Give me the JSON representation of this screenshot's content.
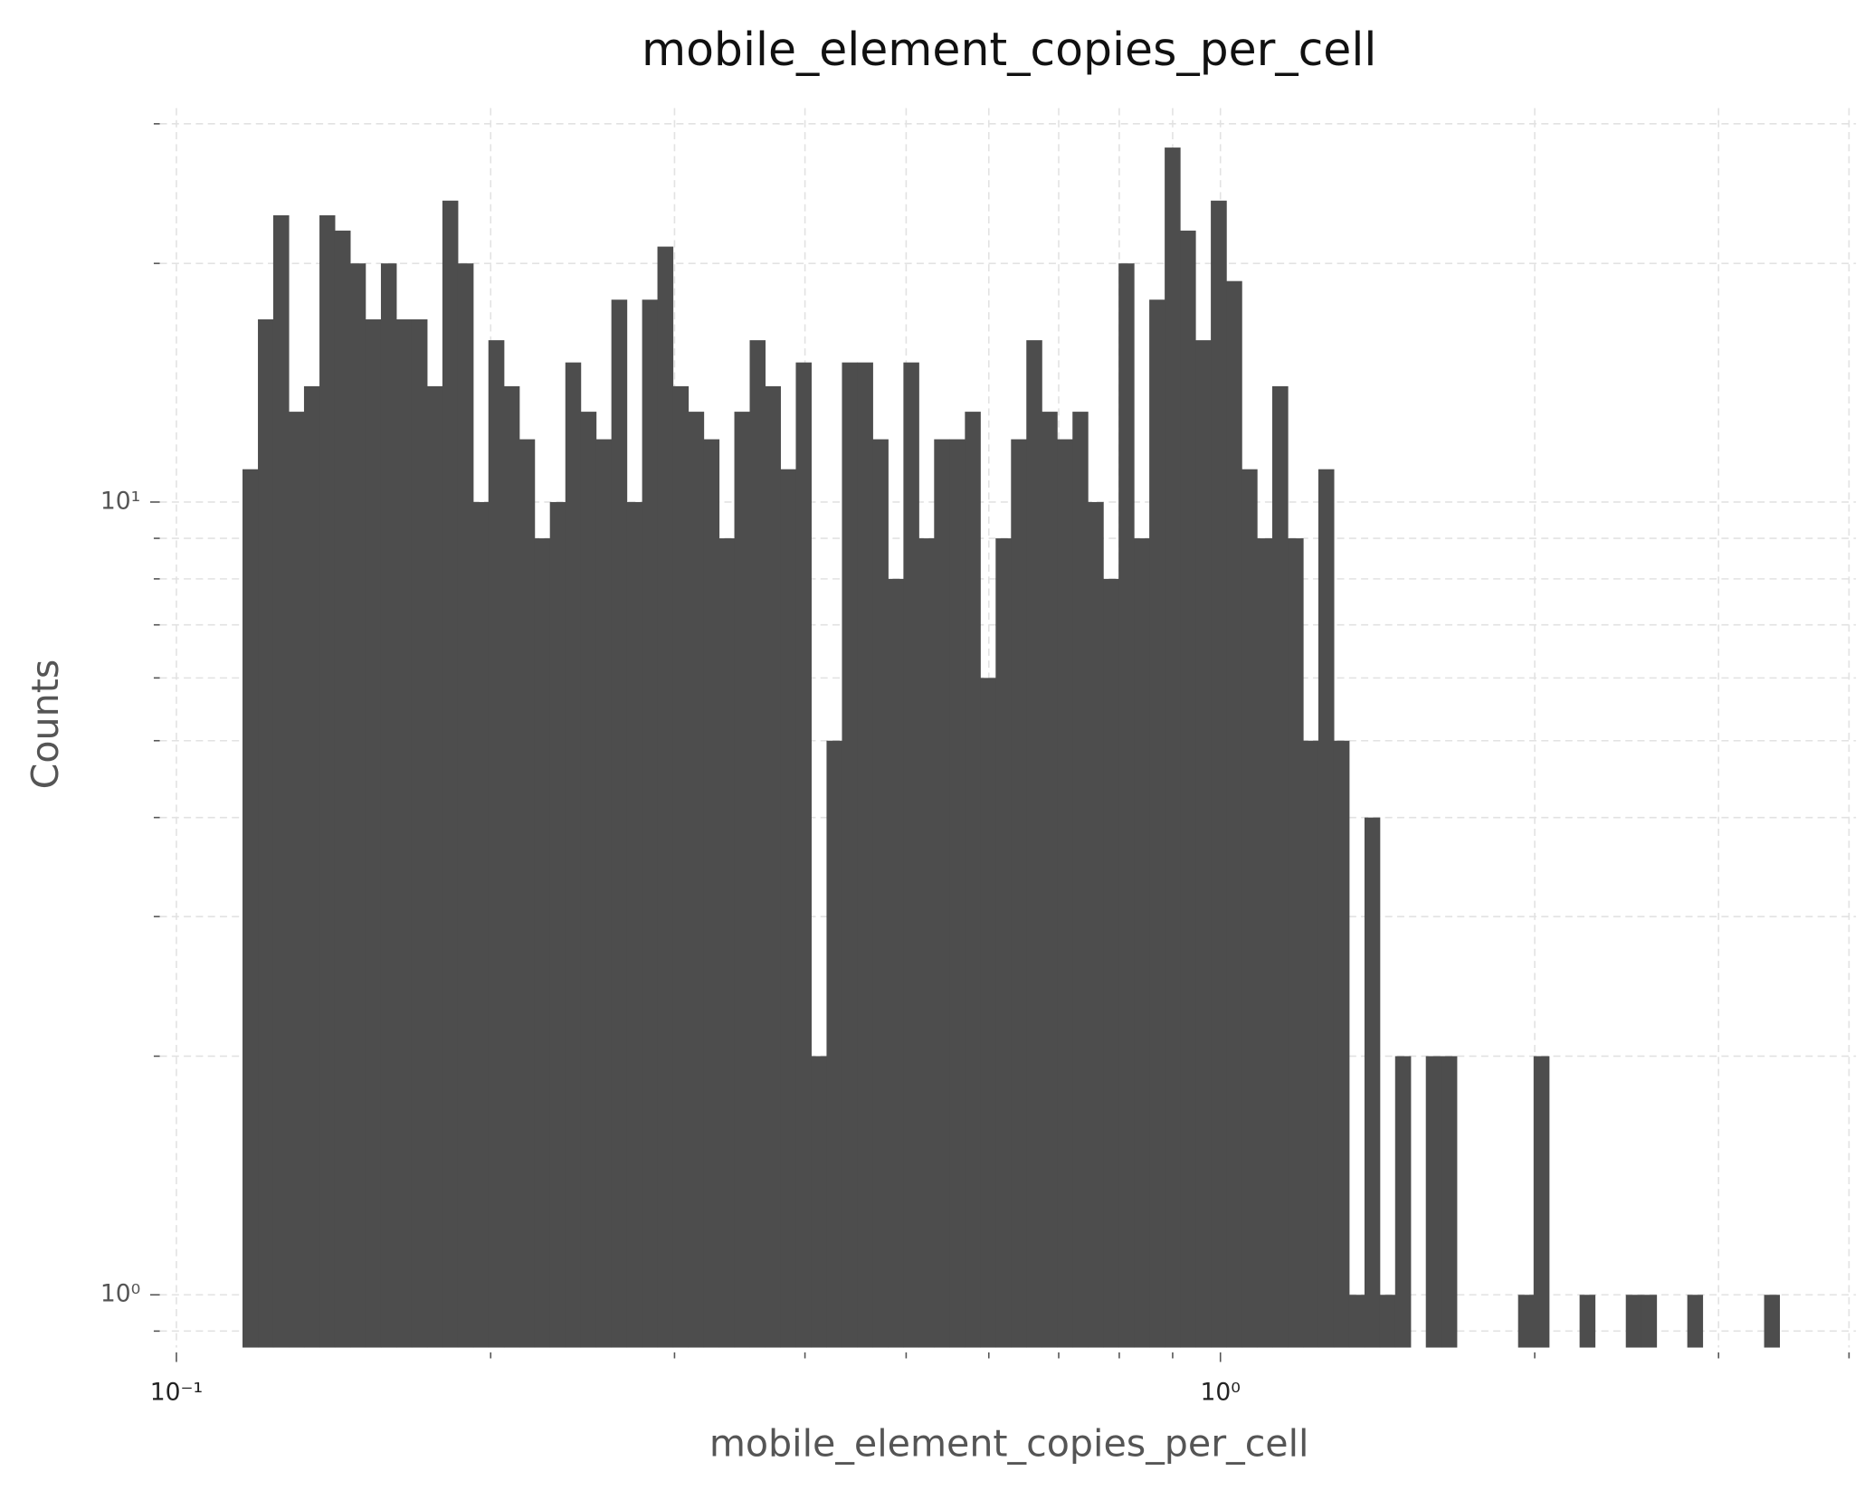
{
  "chart_data": {
    "type": "histogram",
    "title": "mobile_element_copies_per_cell",
    "x_label": "mobile_element_copies_per_cell",
    "y_label": "Counts",
    "color": "#4d4d4d",
    "xscale": "log",
    "yscale": "log",
    "grid": true,
    "xlim": [
      0.0964,
      4.062
    ],
    "ylim": [
      0.858,
      31.4
    ],
    "xticks": [
      {
        "value": 0.1,
        "label": "10⁻¹"
      },
      {
        "value": 1,
        "label": "10⁰"
      }
    ],
    "xminorticks": [
      0.2,
      0.3,
      0.4,
      0.5,
      0.6,
      0.7,
      0.8,
      0.9,
      2,
      3,
      4
    ],
    "yticks": [
      {
        "value": 1,
        "label": "10⁰"
      },
      {
        "value": 10,
        "label": "10¹"
      }
    ],
    "yminorticks": [
      0.9,
      2,
      3,
      4,
      5,
      6,
      7,
      8,
      9,
      20,
      30
    ],
    "bins": [
      0.1157,
      0.1197,
      0.1238,
      0.1281,
      0.1325,
      0.1371,
      0.1418,
      0.1467,
      0.1517,
      0.157,
      0.1624,
      0.168,
      0.1738,
      0.1798,
      0.186,
      0.1924,
      0.199,
      0.2059,
      0.213,
      0.2203,
      0.2279,
      0.2358,
      0.2439,
      0.2523,
      0.261,
      0.27,
      0.2793,
      0.2889,
      0.2989,
      0.3092,
      0.3199,
      0.3309,
      0.3423,
      0.3541,
      0.3663,
      0.3789,
      0.392,
      0.4055,
      0.4195,
      0.434,
      0.4489,
      0.4644,
      0.4804,
      0.497,
      0.5141,
      0.5318,
      0.5502,
      0.5692,
      0.5888,
      0.6091,
      0.6301,
      0.6518,
      0.6743,
      0.6975,
      0.7216,
      0.7464,
      0.7722,
      0.7988,
      0.8263,
      0.8548,
      0.8843,
      0.9148,
      0.9463,
      0.979,
      1.013,
      1.048,
      1.084,
      1.121,
      1.16,
      1.2,
      1.241,
      1.284,
      1.328,
      1.374,
      1.421,
      1.47,
      1.521,
      1.573,
      1.628,
      1.684,
      1.742,
      1.802,
      1.864,
      1.928,
      1.995,
      2.064,
      2.135,
      2.208,
      2.284,
      2.363,
      2.445,
      2.529,
      2.616,
      2.706,
      2.8,
      2.896,
      2.996,
      3.099,
      3.206,
      3.317,
      3.431
    ],
    "values": [
      11,
      17,
      23,
      13,
      14,
      23,
      22,
      20,
      17,
      20,
      17,
      17,
      14,
      24,
      20,
      10,
      16,
      14,
      12,
      9,
      10,
      15,
      13,
      12,
      18,
      10,
      18,
      21,
      14,
      13,
      12,
      9,
      13,
      16,
      14,
      11,
      15,
      2,
      5,
      15,
      15,
      12,
      8,
      15,
      9,
      12,
      12,
      13,
      6,
      9,
      12,
      16,
      13,
      12,
      13,
      10,
      8,
      20,
      9,
      18,
      28,
      22,
      16,
      24,
      19,
      11,
      9,
      14,
      9,
      5,
      11,
      5,
      1,
      4,
      1,
      2,
      0,
      2,
      2,
      0,
      0,
      0,
      0,
      1,
      2,
      0,
      0,
      1,
      0,
      0,
      1,
      1,
      0,
      0,
      1,
      0,
      0,
      0,
      0,
      1
    ]
  }
}
